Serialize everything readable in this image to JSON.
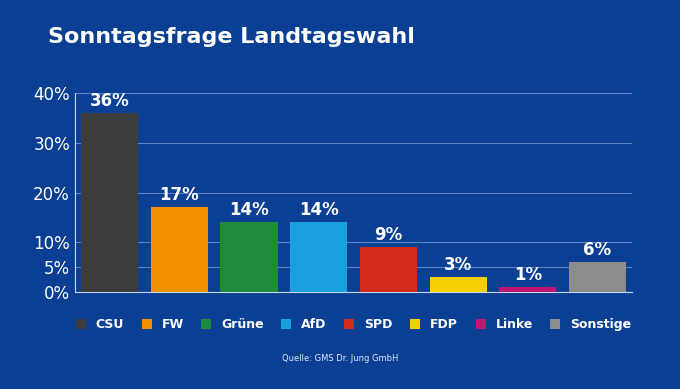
{
  "chart_data": {
    "type": "bar",
    "title": "Sonntagsfrage Landtagswahl",
    "categories": [
      "CSU",
      "FW",
      "Grüne",
      "AfD",
      "SPD",
      "FDP",
      "Linke",
      "Sonstige"
    ],
    "values": [
      36,
      17,
      14,
      14,
      9,
      3,
      1,
      6
    ],
    "value_labels": [
      "36%",
      "17%",
      "14%",
      "14%",
      "9%",
      "3%",
      "1%",
      "6%"
    ],
    "colors": [
      "#3c3c3c",
      "#f39200",
      "#1e8c3a",
      "#1a9fe0",
      "#d42a1a",
      "#f5d000",
      "#c0166e",
      "#8c8c8c"
    ],
    "ylim": [
      0,
      40
    ],
    "yticks": [
      {
        "value": 0,
        "label": "0%"
      },
      {
        "value": 5,
        "label": "5%"
      },
      {
        "value": 10,
        "label": "10%"
      },
      {
        "value": 20,
        "label": "20%"
      },
      {
        "value": 30,
        "label": "30%"
      },
      {
        "value": 40,
        "label": "40%"
      }
    ],
    "grid": true,
    "data_labels": true,
    "tick_labels": "y",
    "legend": "lower center",
    "source": "Quelle: GMS Dr. Jung GmbH"
  }
}
